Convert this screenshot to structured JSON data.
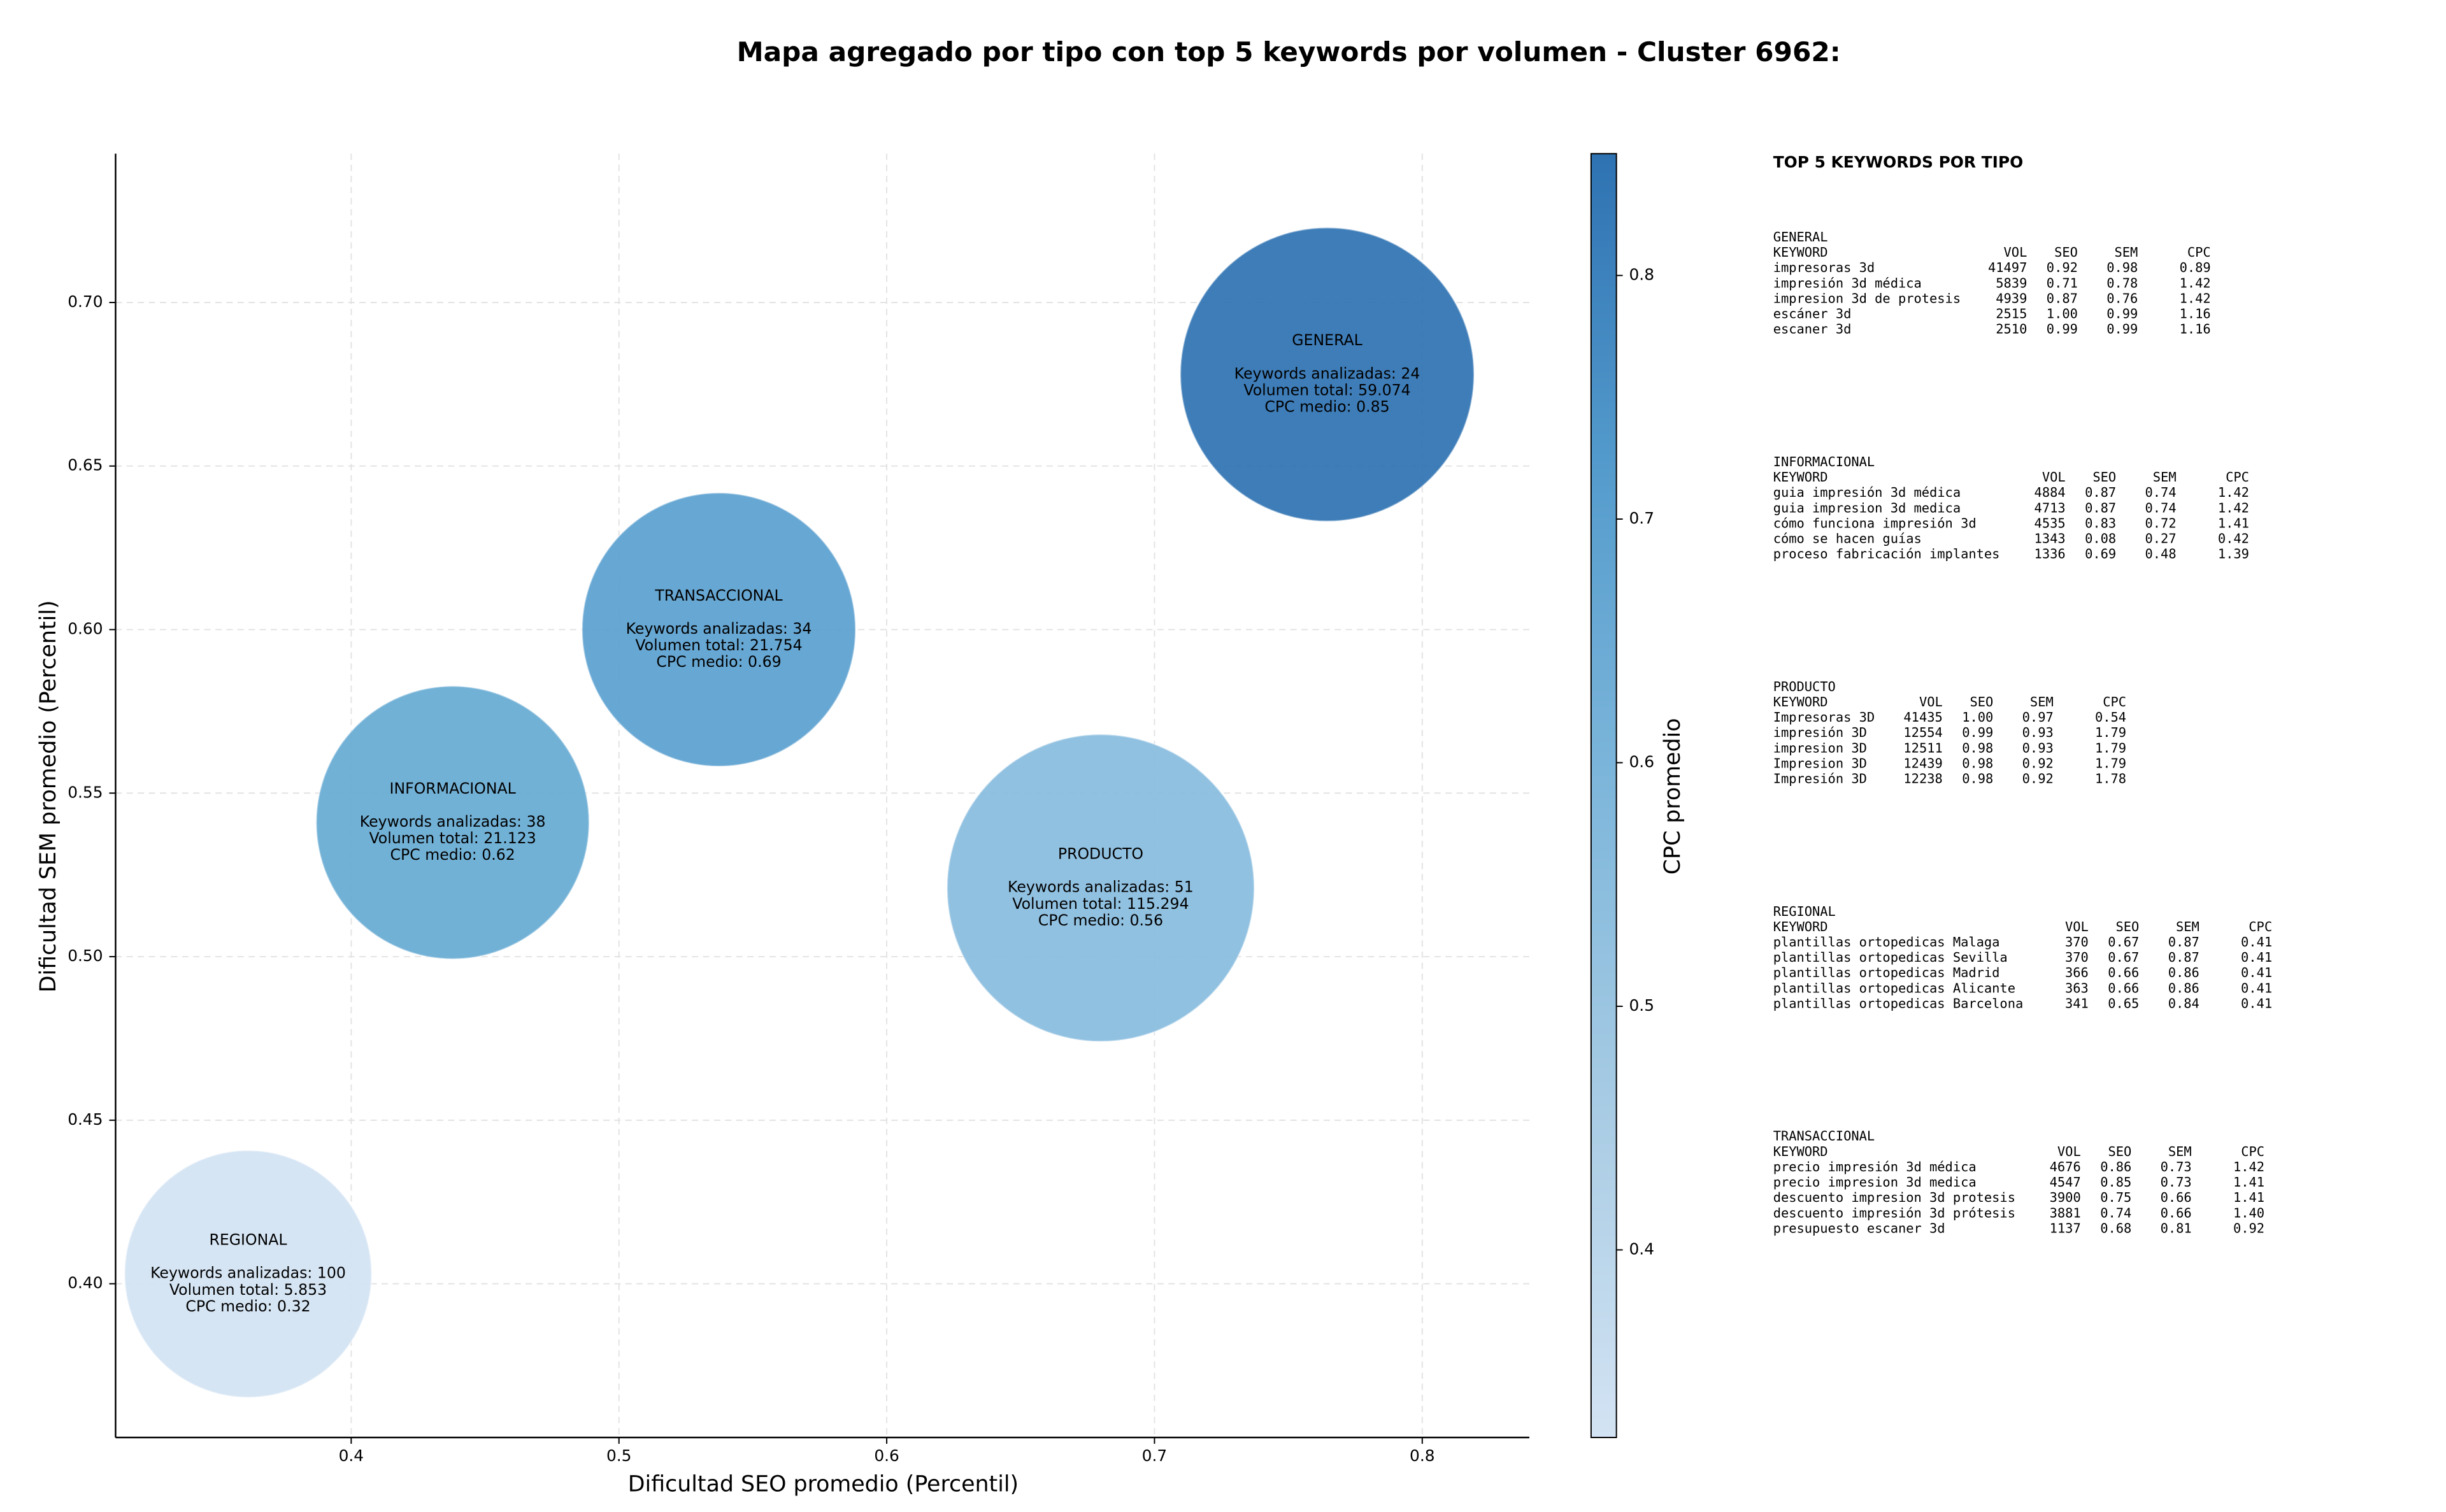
{
  "chart_data": {
    "type": "bubble",
    "title": "Mapa agregado por tipo con top 5 keywords por volumen - Cluster 6962:",
    "x_label": "Dificultad SEO promedio (Percentil)",
    "y_label": "Dificultad SEM promedio (Percentil)",
    "xlim": [
      0.312,
      0.84
    ],
    "ylim": [
      0.353,
      0.7455
    ],
    "xticks": [
      0.4,
      0.5,
      0.6,
      0.7,
      0.8
    ],
    "yticks": [
      {
        "value": 0.4,
        "label": "0.40"
      },
      {
        "value": 0.45,
        "label": "0.45"
      },
      {
        "value": 0.5,
        "label": "0.50"
      },
      {
        "value": 0.55,
        "label": "0.55"
      },
      {
        "value": 0.6,
        "label": "0.60"
      },
      {
        "value": 0.65,
        "label": "0.65"
      },
      {
        "value": 0.7,
        "label": "0.70"
      }
    ],
    "grid": true,
    "points": [
      {
        "label": "GENERAL",
        "x": 0.7645,
        "y": 0.678,
        "size": 59074,
        "cpc": 0.85,
        "color": "#2e72b2",
        "text": [
          "Keywords analizadas: 24",
          "Volumen total: 59.074",
          "CPC medio: 0.85"
        ]
      },
      {
        "label": "INFORMACIONAL",
        "x": 0.4379,
        "y": 0.541,
        "size": 21123,
        "cpc": 0.62,
        "color": "#66aad3",
        "text": [
          "Keywords analizadas: 38",
          "Volumen total: 21.123",
          "CPC medio: 0.62"
        ]
      },
      {
        "label": "PRODUCTO",
        "x": 0.6799,
        "y": 0.521,
        "size": 115294,
        "cpc": 0.56,
        "color": "#88bcde",
        "text": [
          "Keywords analizadas: 51",
          "Volumen total: 115.294",
          "CPC medio: 0.56"
        ]
      },
      {
        "label": "REGIONAL",
        "x": 0.3615,
        "y": 0.403,
        "size": 5853,
        "cpc": 0.32,
        "color": "#d3e3f3",
        "text": [
          "Keywords analizadas: 100",
          "Volumen total: 5.853",
          "CPC medio: 0.32"
        ]
      },
      {
        "label": "TRANSACCIONAL",
        "x": 0.5373,
        "y": 0.6,
        "size": 21754,
        "cpc": 0.69,
        "color": "#5a9fcf",
        "text": [
          "Keywords analizadas: 34",
          "Volumen total: 21.754",
          "CPC medio: 0.69"
        ]
      }
    ],
    "colorbar": {
      "label": "CPC promedio",
      "clim": [
        0.323,
        0.85
      ],
      "ticks": [
        0.4,
        0.5,
        0.6,
        0.7,
        0.8
      ],
      "colors": [
        "#d3e3f3",
        "#a9cce4",
        "#7fb7db",
        "#559ccd",
        "#2e72b2"
      ]
    },
    "side_panel": {
      "title": "TOP 5 KEYWORDS POR TIPO",
      "groups": [
        {
          "name": "GENERAL",
          "header": [
            "KEYWORD",
            "VOL",
            "SEO",
            "SEM",
            "CPC"
          ],
          "rows": [
            [
              "impresoras 3d",
              "41497",
              "0.92",
              "0.98",
              "0.89"
            ],
            [
              "impresión 3d médica",
              "5839",
              "0.71",
              "0.78",
              "1.42"
            ],
            [
              "impresion 3d de protesis",
              "4939",
              "0.87",
              "0.76",
              "1.42"
            ],
            [
              "escáner 3d",
              "2515",
              "1.00",
              "0.99",
              "1.16"
            ],
            [
              "escaner 3d",
              "2510",
              "0.99",
              "0.99",
              "1.16"
            ]
          ]
        },
        {
          "name": "INFORMACIONAL",
          "header": [
            "KEYWORD",
            "VOL",
            "SEO",
            "SEM",
            "CPC"
          ],
          "rows": [
            [
              "guia impresión 3d médica",
              "4884",
              "0.87",
              "0.74",
              "1.42"
            ],
            [
              "guia impresion 3d medica",
              "4713",
              "0.87",
              "0.74",
              "1.42"
            ],
            [
              "cómo funciona impresión 3d",
              "4535",
              "0.83",
              "0.72",
              "1.41"
            ],
            [
              "cómo se hacen guías",
              "1343",
              "0.08",
              "0.27",
              "0.42"
            ],
            [
              "proceso fabricación implantes",
              "1336",
              "0.69",
              "0.48",
              "1.39"
            ]
          ]
        },
        {
          "name": "PRODUCTO",
          "header": [
            "KEYWORD",
            "VOL",
            "SEO",
            "SEM",
            "CPC"
          ],
          "rows": [
            [
              "Impresoras 3D",
              "41435",
              "1.00",
              "0.97",
              "0.54"
            ],
            [
              "impresión 3D",
              "12554",
              "0.99",
              "0.93",
              "1.79"
            ],
            [
              "impresion 3D",
              "12511",
              "0.98",
              "0.93",
              "1.79"
            ],
            [
              "Impresion 3D",
              "12439",
              "0.98",
              "0.92",
              "1.79"
            ],
            [
              "Impresión 3D",
              "12238",
              "0.98",
              "0.92",
              "1.78"
            ]
          ]
        },
        {
          "name": "REGIONAL",
          "header": [
            "KEYWORD",
            "VOL",
            "SEO",
            "SEM",
            "CPC"
          ],
          "rows": [
            [
              "plantillas ortopedicas Malaga",
              "370",
              "0.67",
              "0.87",
              "0.41"
            ],
            [
              "plantillas ortopedicas Sevilla",
              "370",
              "0.67",
              "0.87",
              "0.41"
            ],
            [
              "plantillas ortopedicas Madrid",
              "366",
              "0.66",
              "0.86",
              "0.41"
            ],
            [
              "plantillas ortopedicas Alicante",
              "363",
              "0.66",
              "0.86",
              "0.41"
            ],
            [
              "plantillas ortopedicas Barcelona",
              "341",
              "0.65",
              "0.84",
              "0.41"
            ]
          ]
        },
        {
          "name": "TRANSACCIONAL",
          "header": [
            "KEYWORD",
            "VOL",
            "SEO",
            "SEM",
            "CPC"
          ],
          "rows": [
            [
              "precio impresión 3d médica",
              "4676",
              "0.86",
              "0.73",
              "1.42"
            ],
            [
              "precio impresion 3d medica",
              "4547",
              "0.85",
              "0.73",
              "1.41"
            ],
            [
              "descuento impresion 3d protesis",
              "3900",
              "0.75",
              "0.66",
              "1.41"
            ],
            [
              "descuento impresión 3d prótesis",
              "3881",
              "0.74",
              "0.66",
              "1.40"
            ],
            [
              "presupuesto escaner 3d",
              "1137",
              "0.68",
              "0.81",
              "0.92"
            ]
          ]
        }
      ]
    }
  }
}
